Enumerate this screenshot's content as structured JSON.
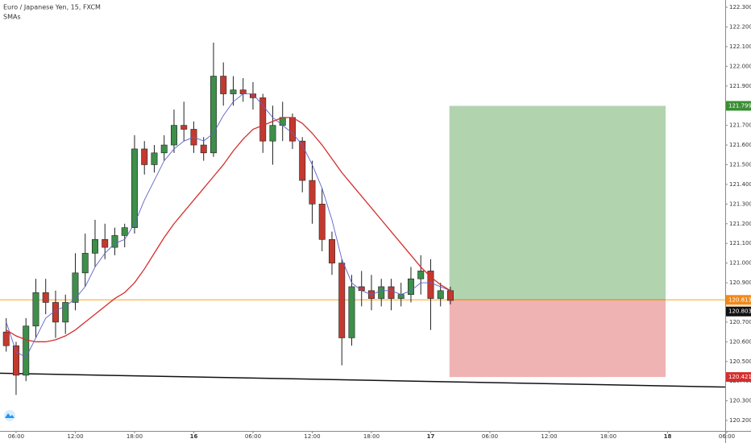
{
  "header": {
    "title": "Euro / Japanese Yen, 15, FXCM",
    "indicator_label": "SMAs"
  },
  "chart_data": {
    "type": "candlestick",
    "x": [
      -1,
      0,
      1,
      2,
      3,
      4,
      5,
      6,
      7,
      8,
      9,
      10,
      11,
      12,
      13,
      14,
      15,
      16,
      17,
      18,
      19,
      20,
      21,
      22,
      23,
      24,
      25,
      26,
      27,
      28,
      29,
      30,
      31,
      32,
      33,
      34,
      35,
      36,
      37,
      38,
      39,
      40,
      41,
      42,
      43,
      44
    ],
    "open": [
      120.65,
      120.58,
      120.43,
      120.68,
      120.85,
      120.8,
      120.7,
      120.8,
      120.95,
      121.05,
      121.12,
      121.08,
      121.14,
      121.18,
      121.58,
      121.5,
      121.56,
      121.6,
      121.7,
      121.68,
      121.6,
      121.56,
      121.95,
      121.86,
      121.88,
      121.86,
      121.84,
      121.62,
      121.7,
      121.74,
      121.62,
      121.42,
      121.3,
      121.12,
      121.0,
      120.62,
      120.88,
      120.86,
      120.82,
      120.88,
      120.82,
      120.84,
      120.92,
      120.96,
      120.82,
      120.86
    ],
    "high": [
      120.72,
      120.6,
      120.72,
      120.92,
      120.92,
      120.86,
      120.84,
      121.05,
      121.15,
      121.22,
      121.2,
      121.18,
      121.2,
      121.65,
      121.62,
      121.6,
      121.65,
      121.78,
      121.82,
      121.72,
      121.64,
      122.12,
      122.02,
      121.95,
      121.94,
      121.92,
      121.86,
      121.8,
      121.82,
      121.76,
      121.64,
      121.52,
      121.38,
      121.16,
      121.02,
      120.94,
      120.96,
      120.94,
      120.92,
      120.92,
      120.9,
      120.98,
      121.04,
      121.02,
      120.9,
      120.88
    ],
    "low": [
      120.55,
      120.33,
      120.4,
      120.62,
      120.74,
      120.62,
      120.64,
      120.76,
      120.88,
      120.98,
      121.02,
      121.04,
      121.08,
      121.15,
      121.45,
      121.46,
      121.52,
      121.56,
      121.62,
      121.56,
      121.52,
      121.54,
      121.8,
      121.8,
      121.82,
      121.78,
      121.56,
      121.5,
      121.62,
      121.58,
      121.36,
      121.2,
      121.06,
      120.94,
      120.48,
      120.58,
      120.78,
      120.76,
      120.78,
      120.76,
      120.78,
      120.8,
      120.84,
      120.66,
      120.78,
      120.79
    ],
    "close": [
      120.58,
      120.43,
      120.68,
      120.85,
      120.8,
      120.7,
      120.8,
      120.95,
      121.05,
      121.12,
      121.08,
      121.14,
      121.18,
      121.58,
      121.5,
      121.56,
      121.6,
      121.7,
      121.68,
      121.6,
      121.56,
      121.95,
      121.86,
      121.88,
      121.86,
      121.84,
      121.62,
      121.7,
      121.74,
      121.62,
      121.42,
      121.3,
      121.12,
      121.0,
      120.62,
      120.88,
      120.86,
      120.82,
      120.88,
      120.82,
      120.84,
      120.92,
      120.96,
      120.82,
      120.86,
      120.81
    ],
    "up_color": "#3d8f4a",
    "down_color": "#c4392f",
    "series": [
      {
        "color": "#5b63c9",
        "values": [
          120.7,
          120.55,
          120.52,
          120.62,
          120.72,
          120.76,
          120.78,
          120.82,
          120.88,
          120.98,
          121.05,
          121.1,
          121.12,
          121.2,
          121.32,
          121.42,
          121.52,
          121.58,
          121.62,
          121.64,
          121.62,
          121.66,
          121.75,
          121.82,
          121.86,
          121.86,
          121.8,
          121.74,
          121.7,
          121.66,
          121.6,
          121.5,
          121.38,
          121.22,
          121.02,
          120.9,
          120.86,
          120.84,
          120.86,
          120.86,
          120.84,
          120.86,
          120.9,
          120.9,
          120.88,
          120.86
        ]
      },
      {
        "color": "#d32f2f",
        "values": [
          120.66,
          120.63,
          120.61,
          120.6,
          120.6,
          120.61,
          120.63,
          120.66,
          120.7,
          120.74,
          120.78,
          120.82,
          120.85,
          120.9,
          120.97,
          121.05,
          121.13,
          121.2,
          121.26,
          121.32,
          121.38,
          121.44,
          121.5,
          121.57,
          121.63,
          121.68,
          121.7,
          121.72,
          121.74,
          121.74,
          121.71,
          121.66,
          121.6,
          121.53,
          121.46,
          121.4,
          121.34,
          121.28,
          121.22,
          121.16,
          121.1,
          121.04,
          120.98,
          120.93,
          120.89,
          120.86
        ]
      }
    ],
    "xlim": [
      -1.63,
      71.84
    ],
    "xticks": [
      {
        "value": 0,
        "label": "06:00"
      },
      {
        "value": 6,
        "label": "12:00"
      },
      {
        "value": 12,
        "label": "18:00"
      },
      {
        "value": 18,
        "label": "16"
      },
      {
        "value": 24,
        "label": "06:00"
      },
      {
        "value": 30,
        "label": "12:00"
      },
      {
        "value": 36,
        "label": "18:00"
      },
      {
        "value": 42,
        "label": "17"
      },
      {
        "value": 48,
        "label": "06:00"
      },
      {
        "value": 54,
        "label": "12:00"
      },
      {
        "value": 60,
        "label": "18:00"
      },
      {
        "value": 66,
        "label": "18"
      },
      {
        "value": 72,
        "label": "06:00"
      }
    ],
    "ylim": [
      120.147,
      122.337
    ],
    "yticks": [
      {
        "value": 120.2,
        "label": "120.200"
      },
      {
        "value": 120.3,
        "label": "120.300"
      },
      {
        "value": 120.4,
        "label": "120.400"
      },
      {
        "value": 120.5,
        "label": "120.500"
      },
      {
        "value": 120.6,
        "label": "120.600"
      },
      {
        "value": 120.7,
        "label": "120.700"
      },
      {
        "value": 120.8,
        "label": "120.800"
      },
      {
        "value": 120.9,
        "label": "120.900"
      },
      {
        "value": 121.0,
        "label": "121.000"
      },
      {
        "value": 121.1,
        "label": "121.100"
      },
      {
        "value": 121.2,
        "label": "121.200"
      },
      {
        "value": 121.3,
        "label": "121.300"
      },
      {
        "value": 121.4,
        "label": "121.400"
      },
      {
        "value": 121.5,
        "label": "121.500"
      },
      {
        "value": 121.6,
        "label": "121.600"
      },
      {
        "value": 121.7,
        "label": "121.700"
      },
      {
        "value": 121.8,
        "label": "121.800"
      },
      {
        "value": 121.9,
        "label": "121.900"
      },
      {
        "value": 122.0,
        "label": "122.000"
      },
      {
        "value": 122.1,
        "label": "122.100"
      },
      {
        "value": 122.2,
        "label": "122.200"
      },
      {
        "value": 122.3,
        "label": "122.300"
      }
    ],
    "position": {
      "start_x": 43.9,
      "end_x": 65.8,
      "entry": 120.813,
      "target": 121.799,
      "stop": 120.421,
      "profit_color": "#b1d4af",
      "loss_color": "#f0b3b3"
    },
    "trendline": {
      "x": [
        -1.63,
        71.84
      ],
      "y": [
        120.44,
        120.37
      ],
      "color": "#111111"
    },
    "price_line": {
      "value": 120.813,
      "color": "#f5a623"
    },
    "axis_labels": [
      {
        "value": 121.799,
        "color": "#3a8f34"
      },
      {
        "value": 120.813,
        "color": "#f08a1c"
      },
      {
        "value": 120.803,
        "color": "#111111"
      },
      {
        "value": 120.421,
        "color": "#d32f2f"
      }
    ],
    "countdown": "02:47"
  }
}
